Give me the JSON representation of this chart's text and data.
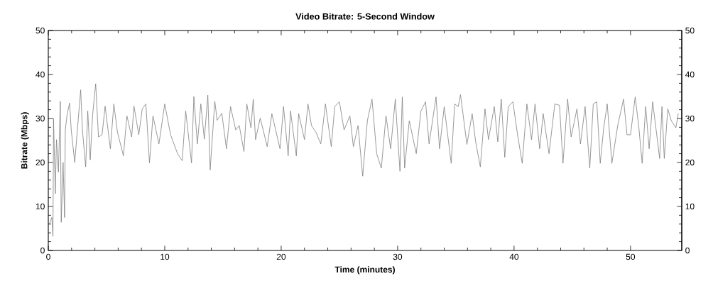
{
  "chart_data": {
    "type": "line",
    "title": "Video Bitrate: 5-Second Window",
    "xlabel": "Time (minutes)",
    "ylabel": "Bitrate (Mbps)",
    "xlim": [
      0,
      54.4
    ],
    "xticks": [
      0,
      10,
      20,
      30,
      40,
      50
    ],
    "ylim": [
      0,
      50
    ],
    "yticks": [
      0,
      10,
      20,
      30,
      40,
      50
    ],
    "y2lim": [
      0,
      50
    ],
    "y2ticks": [
      0,
      10,
      20,
      30,
      40,
      50
    ],
    "grid": false,
    "marker": "none",
    "line_style": "solid",
    "series": [
      {
        "color": "#7f7f7f",
        "x": [
          0.08,
          0.3,
          0.4,
          0.45,
          0.6,
          0.7,
          0.87,
          1.03,
          1.11,
          1.27,
          1.4,
          1.46,
          1.62,
          1.83,
          1.97,
          2.27,
          2.58,
          2.78,
          2.93,
          3.21,
          3.39,
          3.6,
          3.8,
          4.07,
          4.31,
          4.62,
          4.88,
          5.33,
          5.63,
          5.94,
          6.45,
          6.75,
          7.16,
          7.36,
          7.77,
          8.07,
          8.38,
          8.69,
          8.99,
          9.5,
          10.0,
          10.5,
          11.1,
          11.5,
          11.8,
          12.3,
          12.5,
          12.8,
          13.1,
          13.4,
          13.7,
          13.9,
          14.3,
          14.5,
          14.9,
          15.3,
          15.65,
          16.1,
          16.4,
          16.8,
          17.05,
          17.4,
          17.6,
          17.8,
          18.2,
          18.8,
          19.2,
          19.9,
          20.2,
          20.6,
          20.8,
          21.3,
          21.5,
          22.0,
          22.3,
          22.6,
          23.0,
          23.4,
          23.8,
          24.3,
          24.6,
          25.0,
          25.4,
          25.9,
          26.2,
          26.6,
          27.0,
          27.4,
          27.8,
          28.2,
          28.6,
          29.0,
          29.4,
          29.8,
          30.2,
          30.4,
          30.6,
          31.0,
          31.6,
          32.0,
          32.4,
          32.7,
          33.3,
          33.6,
          34.0,
          34.6,
          34.9,
          35.2,
          35.4,
          35.95,
          36.4,
          36.7,
          37.1,
          37.5,
          37.8,
          38.3,
          38.6,
          38.9,
          39.2,
          39.5,
          39.9,
          40.3,
          40.7,
          41.1,
          41.5,
          41.8,
          42.2,
          42.5,
          43.0,
          43.5,
          43.9,
          44.2,
          44.6,
          44.9,
          45.4,
          45.7,
          46.1,
          46.5,
          46.8,
          47.1,
          47.4,
          47.7,
          48.0,
          48.4,
          48.9,
          49.4,
          49.7,
          50.0,
          50.4,
          50.7,
          51.0,
          51.3,
          51.6,
          51.9,
          52.2,
          52.5,
          52.7,
          52.9,
          53.2,
          53.5,
          53.9,
          54.1
        ],
        "values": [
          5.9,
          7.5,
          3.2,
          30,
          12.9,
          25.2,
          17.8,
          33.9,
          6.4,
          20,
          7.5,
          27.4,
          31,
          33.5,
          27.4,
          20,
          30.1,
          36.5,
          27.4,
          19,
          31.7,
          20.6,
          30.6,
          37.9,
          25.8,
          26.3,
          32.8,
          23.1,
          33.3,
          26.9,
          21.5,
          30.6,
          25.8,
          32.8,
          26.3,
          32.2,
          33.3,
          19.9,
          30.6,
          24.2,
          33.3,
          26.3,
          22.0,
          20.4,
          31.7,
          19.9,
          35,
          24.2,
          33.3,
          25.3,
          35.3,
          18.3,
          33.9,
          29.6,
          31.2,
          23.1,
          32.7,
          27.4,
          28.4,
          22.5,
          33.3,
          27.9,
          34.4,
          25.2,
          30.1,
          23.6,
          31.1,
          23.1,
          32.7,
          21.5,
          31.7,
          21.5,
          31.1,
          25.2,
          33.3,
          28.4,
          26.8,
          24.2,
          33.3,
          23.6,
          32.7,
          33.8,
          27.4,
          30.6,
          23.6,
          28.4,
          16.9,
          29.5,
          34.4,
          22.0,
          18.7,
          30.6,
          23.1,
          34.4,
          18.0,
          34.9,
          18.7,
          29.5,
          22.0,
          31.7,
          33.8,
          24.2,
          34.9,
          23.1,
          32.7,
          19.8,
          33.3,
          32.7,
          35.4,
          24.1,
          31.1,
          24.7,
          19.0,
          32.2,
          25.2,
          32.7,
          24.7,
          34.4,
          21.2,
          32.7,
          33.8,
          26.3,
          19.8,
          33.3,
          25.2,
          33.3,
          23.1,
          31.1,
          22.0,
          33.3,
          33.0,
          19.8,
          34.4,
          25.8,
          32.2,
          24.2,
          32.7,
          18.7,
          33.3,
          33.8,
          19.8,
          27.9,
          33.3,
          19.8,
          28.4,
          34.4,
          26.3,
          26.3,
          34.9,
          28.4,
          19.8,
          32.7,
          23.1,
          33.8,
          27.4,
          20.9,
          32.7,
          20.9,
          32.2,
          29.5,
          27.9,
          31.1
        ]
      }
    ]
  }
}
